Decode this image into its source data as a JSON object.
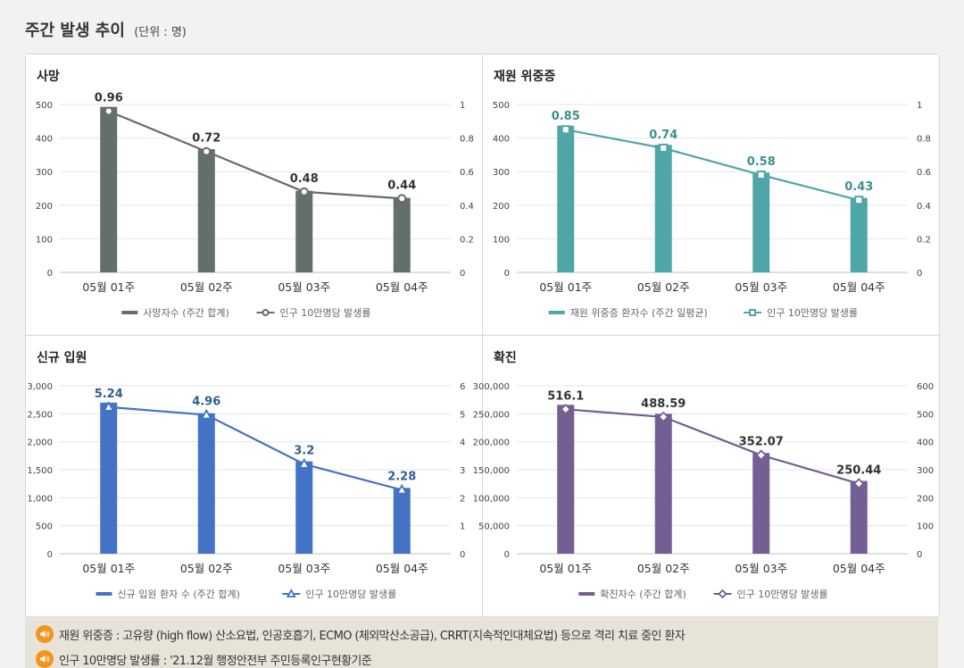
{
  "header": {
    "title": "주간 발생 추이",
    "unit": "(단위 : 명)"
  },
  "colors": {
    "death": "#636e6d",
    "severe": "#4fa6a6",
    "admission": "#4472c4",
    "confirmed": "#735f93"
  },
  "chart_data": [
    {
      "type": "bar",
      "title": "사망",
      "categories": [
        "05월 01주",
        "05월 02주",
        "05월 03주",
        "05월 04주"
      ],
      "series": [
        {
          "name": "사망자수 (주간 합계)",
          "type": "bar",
          "axis": "left",
          "values": [
            493,
            367,
            243,
            222
          ]
        },
        {
          "name": "인구 10만명당 발생률",
          "type": "line",
          "axis": "right",
          "marker": "circle",
          "values": [
            0.96,
            0.72,
            0.48,
            0.44
          ],
          "labels": [
            "0.96",
            "0.72",
            "0.48",
            "0.44"
          ]
        }
      ],
      "ylim_left": [
        0,
        500
      ],
      "yticks_left": [
        "0",
        "100",
        "200",
        "300",
        "400",
        "500"
      ],
      "ylim_right": [
        0,
        1
      ],
      "yticks_right": [
        "0",
        "0.2",
        "0.4",
        "0.6",
        "0.8",
        "1"
      ],
      "color": "#636e6d",
      "label_color": "#333333",
      "legend": "bottom"
    },
    {
      "type": "bar",
      "title": "재원 위중증",
      "categories": [
        "05월 01주",
        "05월 02주",
        "05월 03주",
        "05월 04주"
      ],
      "series": [
        {
          "name": "재원 위중증 환자수 (주간 일평균)",
          "type": "bar",
          "axis": "left",
          "values": [
            437,
            380,
            297,
            222
          ]
        },
        {
          "name": "인구 10만명당 발생률",
          "type": "line",
          "axis": "right",
          "marker": "square",
          "values": [
            0.85,
            0.74,
            0.58,
            0.43
          ],
          "labels": [
            "0.85",
            "0.74",
            "0.58",
            "0.43"
          ]
        }
      ],
      "ylim_left": [
        0,
        500
      ],
      "yticks_left": [
        "0",
        "100",
        "200",
        "300",
        "400",
        "500"
      ],
      "ylim_right": [
        0,
        1
      ],
      "yticks_right": [
        "0",
        "0.2",
        "0.4",
        "0.6",
        "0.8",
        "1"
      ],
      "color": "#4fa6a6",
      "label_color": "#3a8f93",
      "legend": "bottom"
    },
    {
      "type": "bar",
      "title": "신규 입원",
      "categories": [
        "05월 01주",
        "05월 02주",
        "05월 03주",
        "05월 04주"
      ],
      "series": [
        {
          "name": "신규 입원 환자 수 (주간 합계)",
          "type": "bar",
          "axis": "left",
          "values": [
            2700,
            2510,
            1650,
            1175
          ]
        },
        {
          "name": "인구 10만명당 발생률",
          "type": "line",
          "axis": "right",
          "marker": "triangle",
          "values": [
            5.24,
            4.96,
            3.2,
            2.28
          ],
          "labels": [
            "5.24",
            "4.96",
            "3.2",
            "2.28"
          ]
        }
      ],
      "ylim_left": [
        0,
        3000
      ],
      "yticks_left": [
        "0",
        "500",
        "1,000",
        "1,500",
        "2,000",
        "2,500",
        "3,000"
      ],
      "ylim_right": [
        0,
        6
      ],
      "yticks_right": [
        "0",
        "1",
        "2",
        "3",
        "4",
        "5",
        "6"
      ],
      "color": "#4472c4",
      "label_color": "#2f5f8f",
      "legend": "bottom"
    },
    {
      "type": "bar",
      "title": "확진",
      "categories": [
        "05월 01주",
        "05월 02주",
        "05월 03주",
        "05월 04주"
      ],
      "series": [
        {
          "name": "확진자수 (주간 합계)",
          "type": "bar",
          "axis": "left",
          "values": [
            266000,
            250000,
            180000,
            130000
          ]
        },
        {
          "name": "인구 10만명당 발생률",
          "type": "line",
          "axis": "right",
          "marker": "diamond",
          "values": [
            516.1,
            488.59,
            352.07,
            250.44
          ],
          "labels": [
            "516.1",
            "488.59",
            "352.07",
            "250.44"
          ]
        }
      ],
      "ylim_left": [
        0,
        300000
      ],
      "yticks_left": [
        "0",
        "50,000",
        "100,000",
        "150,000",
        "200,000",
        "250,000",
        "300,000"
      ],
      "ylim_right": [
        0,
        600
      ],
      "yticks_right": [
        "0",
        "100",
        "200",
        "300",
        "400",
        "500",
        "600"
      ],
      "color": "#735f93",
      "label_color": "#333333",
      "legend": "bottom"
    }
  ],
  "notes": [
    {
      "icon": "speaker-icon",
      "text": "재원 위중증 : 고유량 (high flow) 산소요법, 인공호흡기, ECMO (체외막산소공급), CRRT(지속적인대체요법) 등으로 격리 치료 중인 환자"
    },
    {
      "icon": "speaker-icon",
      "text": "인구 10만명당 발생률 : '21.12월 행정안전부 주민등록인구현황기준"
    }
  ]
}
